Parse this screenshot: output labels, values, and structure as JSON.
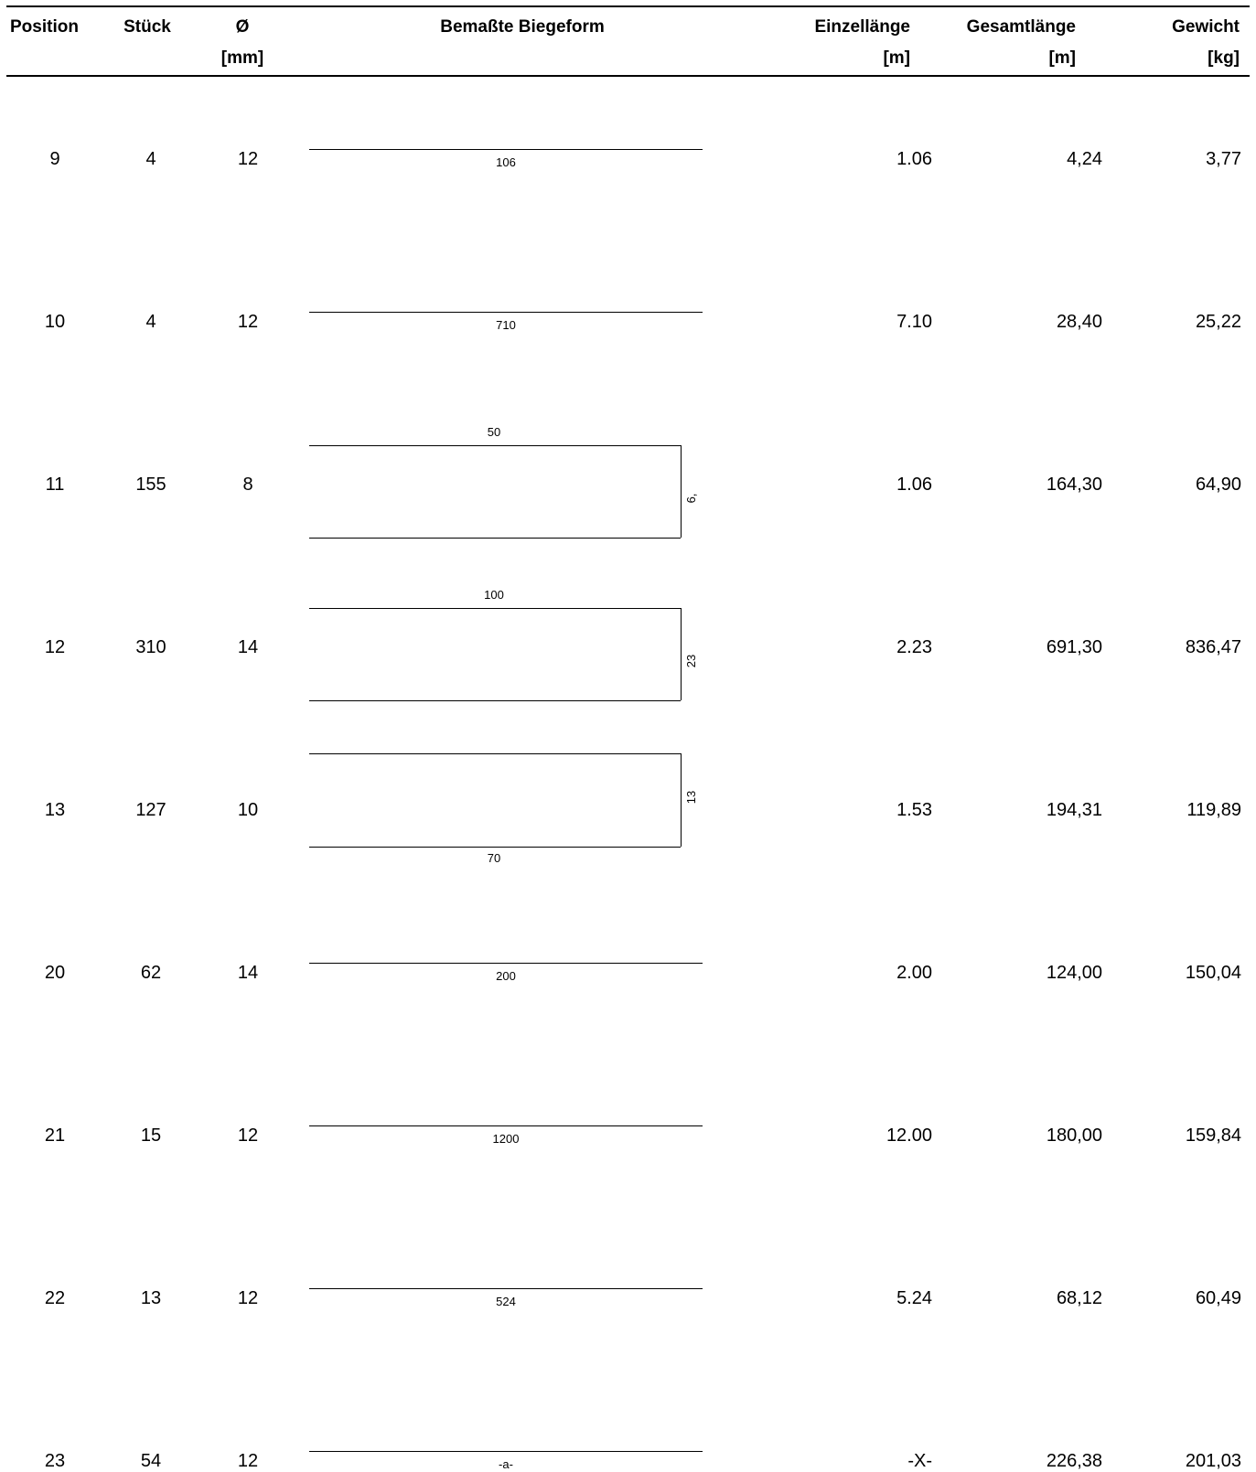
{
  "headers": {
    "position": "Position",
    "stueck": "Stück",
    "diameter": "Ø",
    "diameter_unit": "[mm]",
    "shape": "Bemaßte Biegeform",
    "einzellaenge": "Einzellänge",
    "einzellaenge_unit": "[m]",
    "gesamtlaenge": "Gesamtlänge",
    "gesamtlaenge_unit": "[m]",
    "gewicht": "Gewicht",
    "gewicht_unit": "[kg]"
  },
  "rows": [
    {
      "position": "9",
      "stueck": "4",
      "diameter": "12",
      "einzellaenge": "1.06",
      "gesamtlaenge": "4,24",
      "gewicht": "3,77",
      "shape": {
        "type": "straight",
        "labels": {
          "main": "106"
        }
      }
    },
    {
      "position": "10",
      "stueck": "4",
      "diameter": "12",
      "einzellaenge": "7.10",
      "gesamtlaenge": "28,40",
      "gewicht": "25,22",
      "shape": {
        "type": "straight",
        "labels": {
          "main": "710"
        }
      }
    },
    {
      "position": "11",
      "stueck": "155",
      "diameter": "8",
      "einzellaenge": "1.06",
      "gesamtlaenge": "164,30",
      "gewicht": "64,90",
      "shape": {
        "type": "u",
        "labels": {
          "top": "50",
          "side": "6,"
        }
      }
    },
    {
      "position": "12",
      "stueck": "310",
      "diameter": "14",
      "einzellaenge": "2.23",
      "gesamtlaenge": "691,30",
      "gewicht": "836,47",
      "shape": {
        "type": "u",
        "labels": {
          "top": "100",
          "side": "23"
        }
      }
    },
    {
      "position": "13",
      "stueck": "127",
      "diameter": "10",
      "einzellaenge": "1.53",
      "gesamtlaenge": "194,31",
      "gewicht": "119,89",
      "shape": {
        "type": "u-bottom",
        "labels": {
          "bottom": "70",
          "side": "13"
        }
      }
    },
    {
      "position": "20",
      "stueck": "62",
      "diameter": "14",
      "einzellaenge": "2.00",
      "gesamtlaenge": "124,00",
      "gewicht": "150,04",
      "shape": {
        "type": "straight",
        "labels": {
          "main": "200"
        }
      }
    },
    {
      "position": "21",
      "stueck": "15",
      "diameter": "12",
      "einzellaenge": "12.00",
      "gesamtlaenge": "180,00",
      "gewicht": "159,84",
      "shape": {
        "type": "straight",
        "labels": {
          "main": "1200"
        }
      }
    },
    {
      "position": "22",
      "stueck": "13",
      "diameter": "12",
      "einzellaenge": "5.24",
      "gesamtlaenge": "68,12",
      "gewicht": "60,49",
      "shape": {
        "type": "straight",
        "labels": {
          "main": "524"
        }
      }
    },
    {
      "position": "23",
      "stueck": "54",
      "diameter": "12",
      "einzellaenge": "-X-",
      "gesamtlaenge": "226,38",
      "gewicht": "201,03",
      "shape": {
        "type": "straight",
        "labels": {
          "main": "-a-"
        }
      }
    }
  ]
}
